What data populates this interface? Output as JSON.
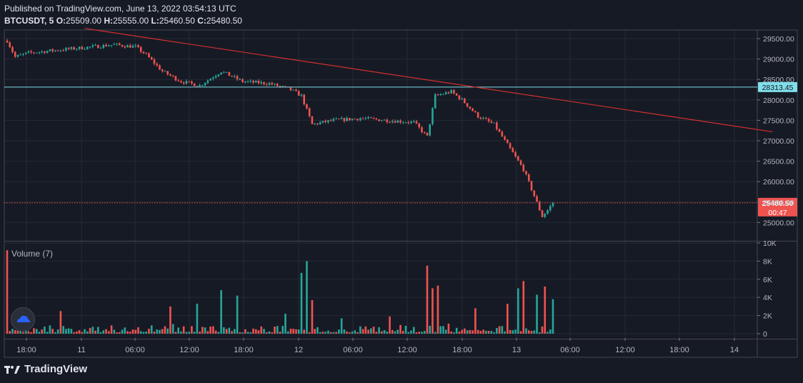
{
  "header": {
    "published": "Published on TradingView.com, June 13, 2022 03:54:13 UTC",
    "symbol": "BTCUSDT, 5",
    "o_label": "O:",
    "o": "25509.00",
    "h_label": "H:",
    "h": "25555.00",
    "l_label": "L:",
    "l": "25460.50",
    "c_label": "C:",
    "c": "25480.50"
  },
  "volume_title": "Volume (7)",
  "footer": {
    "brand": "TradingView"
  },
  "colors": {
    "up": "#26a69a",
    "down": "#ef5350",
    "hline": "#80deea",
    "trend": "#d32f2f",
    "price_line": "#ef5350",
    "background": "#161a25",
    "grid": "#252934"
  },
  "chart_data": [
    {
      "type": "candlestick",
      "x_axis": {
        "tick_labels": [
          "18:00",
          "11",
          "06:00",
          "12:00",
          "18:00",
          "12",
          "06:00",
          "12:00",
          "18:00",
          "13",
          "06:00",
          "12:00",
          "18:00",
          "14"
        ]
      },
      "y_axis": {
        "range": [
          24600,
          29800
        ],
        "tick_labels": [
          "29500.00",
          "29000.00",
          "28500.00",
          "28000.00",
          "27500.00",
          "27000.00",
          "26500.00",
          "26000.00",
          "25500.00",
          "25000.00"
        ],
        "tick_values": [
          29500,
          29000,
          28500,
          28000,
          27500,
          27000,
          26500,
          26000,
          25500,
          25000
        ]
      },
      "price_path": [
        [
          0,
          29450
        ],
        [
          3,
          29050
        ],
        [
          8,
          29150
        ],
        [
          16,
          29200
        ],
        [
          24,
          29250
        ],
        [
          32,
          29300
        ],
        [
          40,
          29350
        ],
        [
          48,
          29300
        ],
        [
          52,
          29100
        ],
        [
          58,
          28700
        ],
        [
          65,
          28450
        ],
        [
          72,
          28350
        ],
        [
          80,
          28700
        ],
        [
          88,
          28450
        ],
        [
          98,
          28400
        ],
        [
          106,
          28250
        ],
        [
          110,
          28100
        ],
        [
          114,
          27400
        ],
        [
          122,
          27500
        ],
        [
          132,
          27550
        ],
        [
          142,
          27500
        ],
        [
          152,
          27450
        ],
        [
          157,
          27100
        ],
        [
          160,
          28100
        ],
        [
          166,
          28200
        ],
        [
          170,
          28000
        ],
        [
          176,
          27600
        ],
        [
          182,
          27400
        ],
        [
          188,
          26800
        ],
        [
          193,
          26300
        ],
        [
          197,
          25650
        ],
        [
          200,
          25150
        ],
        [
          202,
          25300
        ],
        [
          204,
          25480.5
        ]
      ],
      "horizontal_levels": [
        {
          "value": 28313.45,
          "label": "28313.45"
        },
        {
          "value": 25480.5,
          "label": "25480.50",
          "countdown": "00:47"
        }
      ],
      "trendline": {
        "start": [
          29,
          29750
        ],
        "end": [
          286,
          27220
        ]
      }
    },
    {
      "type": "bar",
      "title": "Volume (7)",
      "y_axis": {
        "range": [
          0,
          10000
        ],
        "tick_labels": [
          "10K",
          "8K",
          "6K",
          "4K",
          "2K",
          "0"
        ],
        "tick_values": [
          10000,
          8000,
          6000,
          4000,
          2000,
          0
        ]
      },
      "spikes": [
        [
          0,
          9200
        ],
        [
          20,
          2500
        ],
        [
          61,
          3000
        ],
        [
          71,
          3300
        ],
        [
          80,
          4800
        ],
        [
          86,
          4200
        ],
        [
          104,
          2200
        ],
        [
          110,
          6700
        ],
        [
          112,
          8000
        ],
        [
          114,
          3700
        ],
        [
          125,
          1700
        ],
        [
          143,
          1900
        ],
        [
          157,
          7500
        ],
        [
          159,
          5000
        ],
        [
          161,
          5300
        ],
        [
          175,
          2800
        ],
        [
          187,
          3300
        ],
        [
          191,
          5000
        ],
        [
          193,
          5800
        ],
        [
          198,
          4300
        ],
        [
          201,
          5200
        ],
        [
          204,
          3800
        ]
      ]
    }
  ]
}
